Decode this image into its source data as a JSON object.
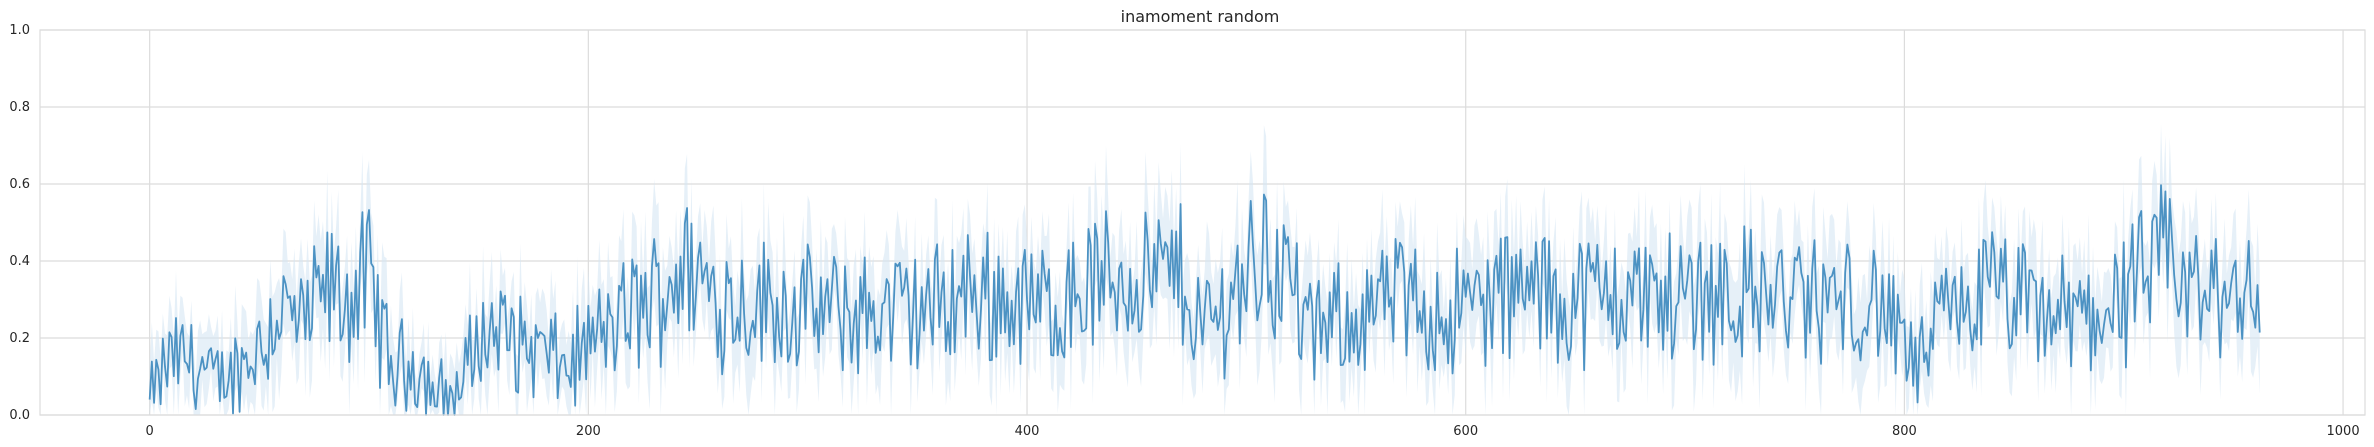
{
  "chart_data": {
    "type": "line",
    "title": "inamoment random",
    "xlabel": "",
    "ylabel": "",
    "xlim": [
      -50,
      1010
    ],
    "ylim": [
      0.0,
      1.0
    ],
    "x_ticks": [
      0,
      200,
      400,
      600,
      800,
      1000
    ],
    "y_ticks": [
      0.0,
      0.2,
      0.4,
      0.6,
      0.8,
      1.0
    ],
    "x_tick_labels": [
      "0",
      "200",
      "400",
      "600",
      "800",
      "1000"
    ],
    "y_tick_labels": [
      "0.0",
      "0.2",
      "0.4",
      "0.6",
      "0.8",
      "1.0"
    ],
    "grid": true,
    "legend": "none",
    "line_color": "#4c92c3",
    "band_color": "#d6e6f4",
    "x_range": [
      0,
      962
    ],
    "series_shape": {
      "note_anchor_points": [
        [
          0,
          0.04
        ],
        [
          10,
          0.15
        ],
        [
          20,
          0.14
        ],
        [
          30,
          0.08
        ],
        [
          40,
          0.12
        ],
        [
          50,
          0.18
        ],
        [
          60,
          0.28
        ],
        [
          70,
          0.22
        ],
        [
          80,
          0.32
        ],
        [
          90,
          0.3
        ],
        [
          100,
          0.35
        ],
        [
          110,
          0.12
        ],
        [
          120,
          0.14
        ],
        [
          130,
          0.06
        ],
        [
          140,
          0.05
        ],
        [
          150,
          0.2
        ],
        [
          160,
          0.22
        ],
        [
          170,
          0.18
        ],
        [
          180,
          0.16
        ],
        [
          190,
          0.12
        ],
        [
          200,
          0.18
        ],
        [
          210,
          0.22
        ],
        [
          220,
          0.27
        ],
        [
          230,
          0.3
        ],
        [
          240,
          0.38
        ],
        [
          250,
          0.36
        ],
        [
          260,
          0.3
        ],
        [
          280,
          0.29
        ],
        [
          300,
          0.27
        ],
        [
          320,
          0.26
        ],
        [
          340,
          0.27
        ],
        [
          360,
          0.28
        ],
        [
          370,
          0.32
        ],
        [
          390,
          0.3
        ],
        [
          410,
          0.28
        ],
        [
          430,
          0.34
        ],
        [
          450,
          0.36
        ],
        [
          470,
          0.36
        ],
        [
          480,
          0.22
        ],
        [
          490,
          0.28
        ],
        [
          500,
          0.38
        ],
        [
          510,
          0.42
        ],
        [
          520,
          0.34
        ],
        [
          530,
          0.2
        ],
        [
          550,
          0.26
        ],
        [
          570,
          0.3
        ],
        [
          590,
          0.26
        ],
        [
          610,
          0.3
        ],
        [
          630,
          0.32
        ],
        [
          650,
          0.3
        ],
        [
          670,
          0.32
        ],
        [
          690,
          0.3
        ],
        [
          710,
          0.33
        ],
        [
          730,
          0.31
        ],
        [
          750,
          0.3
        ],
        [
          770,
          0.29
        ],
        [
          790,
          0.28
        ],
        [
          805,
          0.12
        ],
        [
          820,
          0.26
        ],
        [
          840,
          0.32
        ],
        [
          860,
          0.26
        ],
        [
          880,
          0.25
        ],
        [
          900,
          0.3
        ],
        [
          920,
          0.4
        ],
        [
          935,
          0.3
        ],
        [
          950,
          0.33
        ],
        [
          962,
          0.36
        ]
      ]
    }
  }
}
